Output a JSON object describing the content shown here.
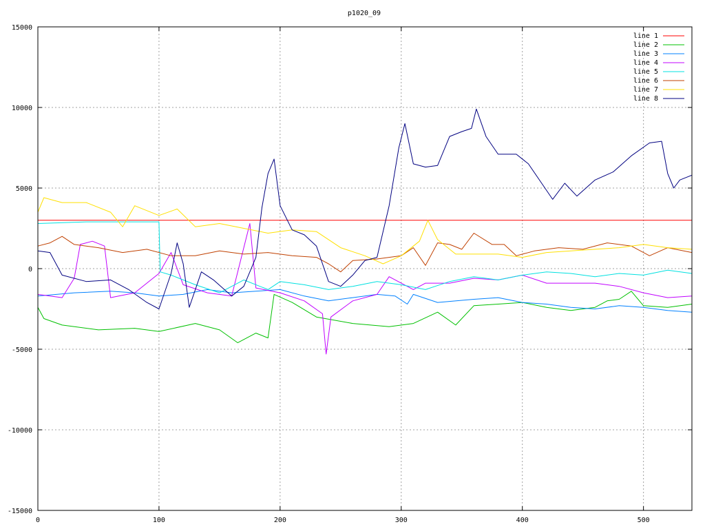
{
  "chart_data": {
    "type": "line",
    "title": "p1020_09",
    "xlabel": "",
    "ylabel": "",
    "xlim": [
      0,
      540
    ],
    "ylim": [
      -15000,
      15000
    ],
    "x_ticks": [
      0,
      100,
      200,
      300,
      400,
      500
    ],
    "y_ticks": [
      -15000,
      -10000,
      -5000,
      0,
      5000,
      10000,
      15000
    ],
    "grid": true,
    "legend_position": "top-right",
    "series": [
      {
        "name": "line 1",
        "color": "#ff0000",
        "points": [
          [
            0,
            3000
          ],
          [
            540,
            3000
          ]
        ]
      },
      {
        "name": "line 2",
        "color": "#00c000",
        "points": [
          [
            0,
            -2400
          ],
          [
            5,
            -3100
          ],
          [
            20,
            -3500
          ],
          [
            50,
            -3800
          ],
          [
            80,
            -3700
          ],
          [
            100,
            -3900
          ],
          [
            130,
            -3400
          ],
          [
            150,
            -3800
          ],
          [
            165,
            -4600
          ],
          [
            180,
            -4000
          ],
          [
            190,
            -4300
          ],
          [
            195,
            -1600
          ],
          [
            210,
            -2100
          ],
          [
            230,
            -3000
          ],
          [
            260,
            -3400
          ],
          [
            290,
            -3600
          ],
          [
            310,
            -3400
          ],
          [
            330,
            -2700
          ],
          [
            345,
            -3500
          ],
          [
            360,
            -2300
          ],
          [
            380,
            -2200
          ],
          [
            400,
            -2100
          ],
          [
            420,
            -2400
          ],
          [
            440,
            -2600
          ],
          [
            460,
            -2400
          ],
          [
            470,
            -2000
          ],
          [
            480,
            -1900
          ],
          [
            490,
            -1400
          ],
          [
            500,
            -2300
          ],
          [
            520,
            -2400
          ],
          [
            540,
            -2200
          ]
        ]
      },
      {
        "name": "line 3",
        "color": "#0080ff",
        "points": [
          [
            0,
            -1700
          ],
          [
            30,
            -1500
          ],
          [
            60,
            -1400
          ],
          [
            80,
            -1500
          ],
          [
            100,
            -1700
          ],
          [
            120,
            -1600
          ],
          [
            140,
            -1300
          ],
          [
            160,
            -1500
          ],
          [
            180,
            -1400
          ],
          [
            200,
            -1300
          ],
          [
            220,
            -1700
          ],
          [
            240,
            -2000
          ],
          [
            260,
            -1800
          ],
          [
            280,
            -1600
          ],
          [
            295,
            -1700
          ],
          [
            305,
            -2200
          ],
          [
            310,
            -1600
          ],
          [
            330,
            -2100
          ],
          [
            360,
            -1900
          ],
          [
            380,
            -1800
          ],
          [
            400,
            -2100
          ],
          [
            420,
            -2200
          ],
          [
            440,
            -2400
          ],
          [
            460,
            -2500
          ],
          [
            480,
            -2300
          ],
          [
            500,
            -2400
          ],
          [
            520,
            -2600
          ],
          [
            540,
            -2700
          ]
        ]
      },
      {
        "name": "line 4",
        "color": "#c000ff",
        "points": [
          [
            0,
            -1600
          ],
          [
            20,
            -1800
          ],
          [
            30,
            -600
          ],
          [
            35,
            1500
          ],
          [
            45,
            1700
          ],
          [
            55,
            1400
          ],
          [
            60,
            -1800
          ],
          [
            80,
            -1500
          ],
          [
            100,
            -300
          ],
          [
            110,
            1000
          ],
          [
            120,
            -1000
          ],
          [
            140,
            -1500
          ],
          [
            160,
            -1700
          ],
          [
            175,
            2800
          ],
          [
            180,
            -1200
          ],
          [
            200,
            -1500
          ],
          [
            220,
            -2000
          ],
          [
            235,
            -2800
          ],
          [
            238,
            -5300
          ],
          [
            242,
            -3000
          ],
          [
            260,
            -2000
          ],
          [
            280,
            -1600
          ],
          [
            290,
            -500
          ],
          [
            310,
            -1300
          ],
          [
            320,
            -900
          ],
          [
            340,
            -900
          ],
          [
            360,
            -600
          ],
          [
            380,
            -700
          ],
          [
            400,
            -400
          ],
          [
            420,
            -900
          ],
          [
            440,
            -900
          ],
          [
            460,
            -900
          ],
          [
            480,
            -1100
          ],
          [
            500,
            -1500
          ],
          [
            520,
            -1800
          ],
          [
            540,
            -1700
          ]
        ]
      },
      {
        "name": "line 5",
        "color": "#00e0e0",
        "points": [
          [
            0,
            2800
          ],
          [
            40,
            2900
          ],
          [
            70,
            2900
          ],
          [
            99,
            2900
          ],
          [
            100,
            2900
          ],
          [
            101,
            -200
          ],
          [
            110,
            -400
          ],
          [
            130,
            -1000
          ],
          [
            150,
            -1500
          ],
          [
            170,
            -700
          ],
          [
            190,
            -1300
          ],
          [
            200,
            -800
          ],
          [
            220,
            -1000
          ],
          [
            240,
            -1300
          ],
          [
            260,
            -1100
          ],
          [
            280,
            -800
          ],
          [
            300,
            -1000
          ],
          [
            320,
            -1300
          ],
          [
            340,
            -800
          ],
          [
            360,
            -500
          ],
          [
            380,
            -700
          ],
          [
            400,
            -400
          ],
          [
            420,
            -200
          ],
          [
            440,
            -300
          ],
          [
            460,
            -500
          ],
          [
            480,
            -300
          ],
          [
            500,
            -400
          ],
          [
            520,
            -100
          ],
          [
            540,
            -300
          ]
        ]
      },
      {
        "name": "line 6",
        "color": "#c04000",
        "points": [
          [
            0,
            1400
          ],
          [
            10,
            1600
          ],
          [
            20,
            2000
          ],
          [
            30,
            1500
          ],
          [
            50,
            1300
          ],
          [
            70,
            1000
          ],
          [
            90,
            1200
          ],
          [
            110,
            800
          ],
          [
            130,
            800
          ],
          [
            150,
            1100
          ],
          [
            170,
            900
          ],
          [
            190,
            1000
          ],
          [
            210,
            800
          ],
          [
            230,
            700
          ],
          [
            240,
            300
          ],
          [
            250,
            -200
          ],
          [
            260,
            500
          ],
          [
            280,
            600
          ],
          [
            300,
            800
          ],
          [
            310,
            1300
          ],
          [
            320,
            200
          ],
          [
            330,
            1600
          ],
          [
            340,
            1500
          ],
          [
            350,
            1200
          ],
          [
            360,
            2200
          ],
          [
            375,
            1500
          ],
          [
            385,
            1500
          ],
          [
            395,
            800
          ],
          [
            410,
            1100
          ],
          [
            430,
            1300
          ],
          [
            450,
            1200
          ],
          [
            470,
            1600
          ],
          [
            490,
            1400
          ],
          [
            505,
            800
          ],
          [
            520,
            1300
          ],
          [
            540,
            1000
          ]
        ]
      },
      {
        "name": "line 7",
        "color": "#ffe000",
        "points": [
          [
            0,
            3500
          ],
          [
            5,
            4400
          ],
          [
            20,
            4100
          ],
          [
            40,
            4100
          ],
          [
            60,
            3500
          ],
          [
            70,
            2600
          ],
          [
            80,
            3900
          ],
          [
            100,
            3300
          ],
          [
            115,
            3700
          ],
          [
            130,
            2600
          ],
          [
            150,
            2800
          ],
          [
            170,
            2500
          ],
          [
            190,
            2200
          ],
          [
            210,
            2400
          ],
          [
            230,
            2300
          ],
          [
            250,
            1300
          ],
          [
            270,
            800
          ],
          [
            285,
            300
          ],
          [
            300,
            800
          ],
          [
            315,
            1700
          ],
          [
            322,
            3000
          ],
          [
            330,
            1800
          ],
          [
            345,
            900
          ],
          [
            360,
            900
          ],
          [
            380,
            900
          ],
          [
            400,
            700
          ],
          [
            420,
            1000
          ],
          [
            440,
            1100
          ],
          [
            460,
            1200
          ],
          [
            480,
            1300
          ],
          [
            500,
            1500
          ],
          [
            520,
            1300
          ],
          [
            540,
            1200
          ]
        ]
      },
      {
        "name": "line 8",
        "color": "#000080",
        "points": [
          [
            0,
            1100
          ],
          [
            10,
            1000
          ],
          [
            20,
            -400
          ],
          [
            40,
            -800
          ],
          [
            60,
            -700
          ],
          [
            75,
            -1300
          ],
          [
            90,
            -2100
          ],
          [
            100,
            -2500
          ],
          [
            110,
            -300
          ],
          [
            115,
            1600
          ],
          [
            120,
            300
          ],
          [
            125,
            -2400
          ],
          [
            135,
            -200
          ],
          [
            145,
            -700
          ],
          [
            160,
            -1700
          ],
          [
            170,
            -1100
          ],
          [
            180,
            700
          ],
          [
            185,
            3800
          ],
          [
            190,
            5900
          ],
          [
            195,
            6800
          ],
          [
            200,
            3900
          ],
          [
            210,
            2400
          ],
          [
            220,
            2100
          ],
          [
            230,
            1400
          ],
          [
            240,
            -800
          ],
          [
            250,
            -1100
          ],
          [
            260,
            -400
          ],
          [
            270,
            500
          ],
          [
            280,
            700
          ],
          [
            290,
            3900
          ],
          [
            298,
            7500
          ],
          [
            303,
            9000
          ],
          [
            310,
            6500
          ],
          [
            320,
            6300
          ],
          [
            330,
            6400
          ],
          [
            340,
            8200
          ],
          [
            350,
            8500
          ],
          [
            358,
            8700
          ],
          [
            362,
            9900
          ],
          [
            370,
            8200
          ],
          [
            380,
            7100
          ],
          [
            395,
            7100
          ],
          [
            405,
            6500
          ],
          [
            415,
            5400
          ],
          [
            425,
            4300
          ],
          [
            435,
            5300
          ],
          [
            445,
            4500
          ],
          [
            460,
            5500
          ],
          [
            475,
            6000
          ],
          [
            490,
            7000
          ],
          [
            505,
            7800
          ],
          [
            515,
            7900
          ],
          [
            520,
            5900
          ],
          [
            525,
            5000
          ],
          [
            530,
            5500
          ],
          [
            540,
            5800
          ]
        ]
      }
    ]
  }
}
